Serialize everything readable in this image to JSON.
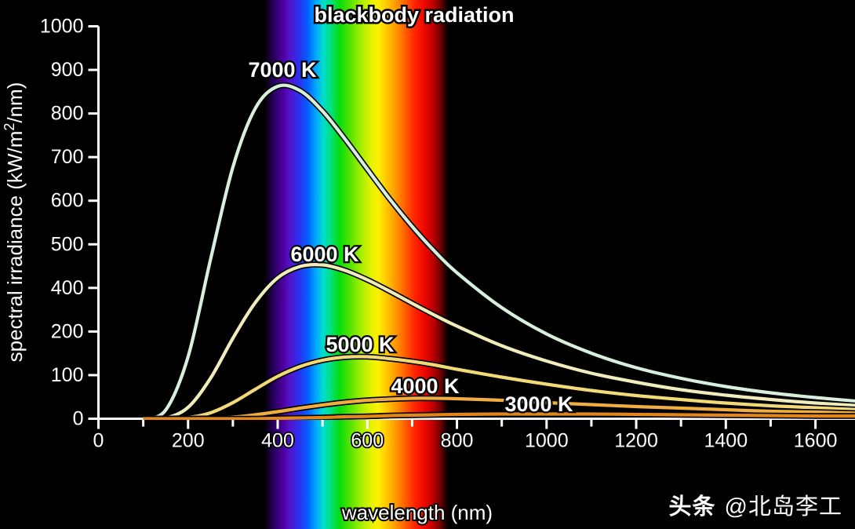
{
  "title": "blackbody radiation",
  "watermark": {
    "brand": "头条",
    "handle": "@北岛李工"
  },
  "chart_data": {
    "type": "line",
    "title": "blackbody radiation",
    "xlabel": "wavelength (nm)",
    "ylabel": "spectral irradiance (kW/m^2/nm)",
    "ylabel_parts": {
      "pre": "spectral irradiance (kW/m",
      "sup": "2",
      "post": "/nm)"
    },
    "x_axis": {
      "unit": "nm",
      "range": [
        0,
        1690
      ],
      "major_ticks": [
        0,
        200,
        400,
        600,
        800,
        1000,
        1200,
        1400,
        1600
      ],
      "minor_ticks": [
        100,
        300,
        500,
        700,
        900,
        1100,
        1300,
        1500
      ]
    },
    "y_axis": {
      "unit": "kW/m^2/nm",
      "range": [
        0,
        1000
      ],
      "tick_labels_bottom_to_top": [
        "0",
        "100",
        "200",
        "400",
        "500",
        "600",
        "700",
        "800",
        "900",
        "1000"
      ],
      "ticks_evenly_spaced": true
    },
    "grid": false,
    "legend_position": "inline-curve-labels",
    "visible_spectrum_band_nm": [
      380,
      760
    ],
    "wavelengths_nm": [
      100,
      150,
      200,
      250,
      300,
      350,
      400,
      450,
      500,
      550,
      600,
      650,
      700,
      750,
      800,
      900,
      1000,
      1100,
      1200,
      1300,
      1400,
      1500,
      1600,
      1700
    ],
    "series": [
      {
        "name": "7000 K",
        "color": "#d7efdc",
        "values": [
          0,
          22,
          158,
          405,
          641,
          791,
          847,
          836,
          784,
          713,
          636,
          560,
          490,
          427,
          372,
          283,
          216,
          167,
          130,
          103,
          82,
          66,
          54,
          44
        ]
      },
      {
        "name": "6000 K",
        "color": "#f1ecbb",
        "values": [
          0,
          2,
          29,
          103,
          205,
          296,
          359,
          388,
          392,
          378,
          354,
          325,
          294,
          264,
          236,
          186,
          147,
          116,
          93,
          74,
          60,
          49,
          40,
          33
        ]
      },
      {
        "name": "5000 K",
        "color": "#f3da79",
        "values": [
          0,
          0,
          3,
          15,
          41,
          75,
          108,
          133,
          149,
          157,
          158,
          153,
          146,
          137,
          126,
          106,
          88,
          72,
          59,
          49,
          40,
          33,
          28,
          23
        ]
      },
      {
        "name": "4000 K",
        "color": "#f0ad42",
        "values": [
          0,
          0,
          0,
          1,
          4,
          10,
          18,
          27,
          35,
          42,
          47,
          50,
          52,
          52,
          51,
          47,
          41,
          36,
          31,
          27,
          23,
          19,
          17,
          14
        ]
      },
      {
        "name": "3000 K",
        "color": "#e2861c",
        "values": [
          0,
          0,
          0,
          0,
          0,
          0,
          1,
          2,
          3,
          5,
          6,
          8,
          9,
          10,
          11,
          12,
          12,
          12,
          11,
          10,
          9,
          8,
          7,
          7
        ]
      }
    ]
  },
  "colors": {
    "background": "#000000",
    "axis": "#ffffff",
    "text": "#ffffff",
    "text_outline": "#000000",
    "spectrum_stops": [
      [
        "#000000",
        0
      ],
      [
        "#26005c",
        0.05
      ],
      [
        "#4b009b",
        0.1
      ],
      [
        "#5214cc",
        0.14
      ],
      [
        "#2a31f0",
        0.19
      ],
      [
        "#0064ff",
        0.24
      ],
      [
        "#00a6ff",
        0.28
      ],
      [
        "#00dcd0",
        0.32
      ],
      [
        "#00e184",
        0.36
      ],
      [
        "#08dc0c",
        0.41
      ],
      [
        "#58e400",
        0.47
      ],
      [
        "#a9ee00",
        0.53
      ],
      [
        "#e0f200",
        0.58
      ],
      [
        "#fdf000",
        0.62
      ],
      [
        "#ffc400",
        0.67
      ],
      [
        "#ff9400",
        0.72
      ],
      [
        "#ff5c00",
        0.77
      ],
      [
        "#ff2400",
        0.82
      ],
      [
        "#ef0700",
        0.87
      ],
      [
        "#bd0000",
        0.92
      ],
      [
        "#6d0000",
        0.96
      ],
      [
        "#000000",
        1
      ]
    ]
  }
}
